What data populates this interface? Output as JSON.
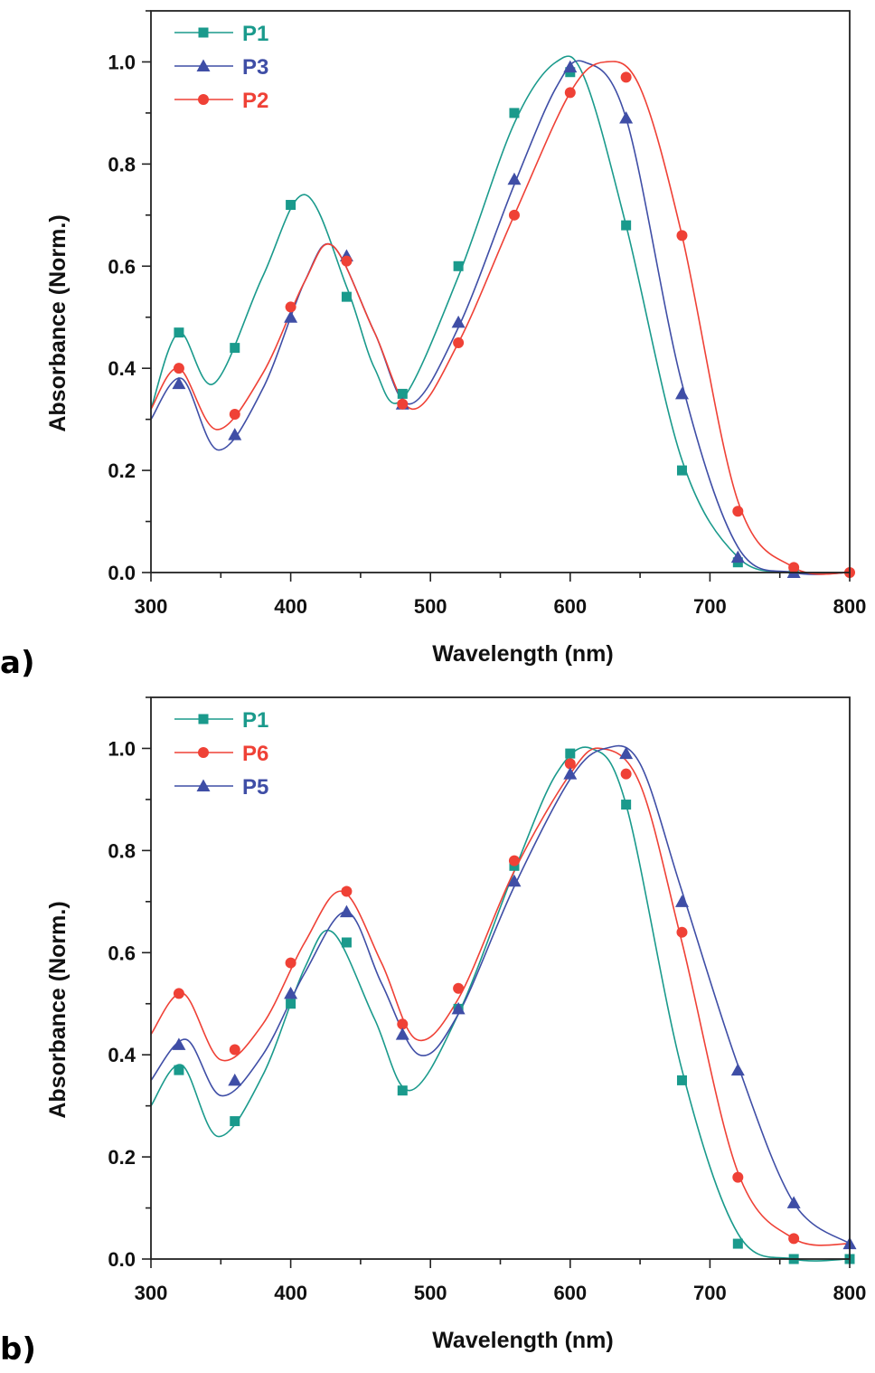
{
  "colors": {
    "P1": "#1a9a8c",
    "P2": "#ef4136",
    "P3": "#3f4ea6",
    "P5": "#3f4ea6",
    "P6": "#ef4136"
  },
  "chart_data": [
    {
      "panel_label": "a)",
      "type": "line",
      "xlabel": "Wavelength (nm)",
      "ylabel": "Absorbance (Norm.)",
      "xlim": [
        300,
        800
      ],
      "ylim": [
        0,
        1.1
      ],
      "x_ticks": [
        "300",
        "400",
        "500",
        "600",
        "700",
        "800"
      ],
      "y_ticks": [
        "0.0",
        "0.2",
        "0.4",
        "0.6",
        "0.8",
        "1.0"
      ],
      "legend_position": "top-left",
      "legend": [
        "P1",
        "P3",
        "P2"
      ],
      "series": [
        {
          "name": "P1",
          "marker": "square",
          "color": "#1a9a8c",
          "x": [
            320,
            360,
            400,
            440,
            480,
            520,
            560,
            600,
            640,
            680,
            720,
            760
          ],
          "y": [
            0.47,
            0.44,
            0.72,
            0.54,
            0.35,
            0.6,
            0.9,
            0.98,
            0.68,
            0.2,
            0.02,
            0.0
          ],
          "curve_x": [
            300,
            320,
            345,
            380,
            410,
            440,
            460,
            480,
            520,
            560,
            590,
            610,
            640,
            680,
            720,
            760,
            800
          ],
          "curve_y": [
            0.32,
            0.47,
            0.37,
            0.58,
            0.74,
            0.56,
            0.4,
            0.34,
            0.58,
            0.88,
            1.0,
            0.97,
            0.68,
            0.22,
            0.03,
            0.0,
            0.0
          ]
        },
        {
          "name": "P3",
          "marker": "triangle",
          "color": "#3f4ea6",
          "x": [
            320,
            360,
            400,
            440,
            480,
            520,
            560,
            600,
            640,
            680,
            720,
            760
          ],
          "y": [
            0.37,
            0.27,
            0.5,
            0.62,
            0.33,
            0.49,
            0.77,
            0.99,
            0.89,
            0.35,
            0.03,
            0.0
          ],
          "curve_x": [
            300,
            322,
            348,
            380,
            410,
            430,
            460,
            485,
            520,
            560,
            590,
            610,
            640,
            680,
            720,
            760,
            800
          ],
          "curve_y": [
            0.3,
            0.38,
            0.24,
            0.36,
            0.57,
            0.64,
            0.47,
            0.33,
            0.48,
            0.76,
            0.95,
            1.0,
            0.89,
            0.37,
            0.05,
            0.0,
            0.0
          ]
        },
        {
          "name": "P2",
          "marker": "circle",
          "color": "#ef4136",
          "x": [
            320,
            360,
            400,
            440,
            480,
            520,
            560,
            600,
            640,
            680,
            720,
            760,
            800
          ],
          "y": [
            0.4,
            0.31,
            0.52,
            0.61,
            0.33,
            0.45,
            0.7,
            0.94,
            0.97,
            0.66,
            0.12,
            0.01,
            0.0
          ],
          "curve_x": [
            300,
            320,
            347,
            380,
            410,
            430,
            460,
            487,
            520,
            560,
            600,
            625,
            650,
            680,
            720,
            760,
            800
          ],
          "curve_y": [
            0.32,
            0.4,
            0.28,
            0.39,
            0.57,
            0.64,
            0.47,
            0.32,
            0.45,
            0.7,
            0.94,
            1.0,
            0.95,
            0.66,
            0.14,
            0.01,
            0.0
          ]
        }
      ]
    },
    {
      "panel_label": "b)",
      "type": "line",
      "xlabel": "Wavelength (nm)",
      "ylabel": "Absorbance (Norm.)",
      "xlim": [
        300,
        800
      ],
      "ylim": [
        0,
        1.1
      ],
      "x_ticks": [
        "300",
        "400",
        "500",
        "600",
        "700",
        "800"
      ],
      "y_ticks": [
        "0.0",
        "0.2",
        "0.4",
        "0.6",
        "0.8",
        "1.0"
      ],
      "legend_position": "top-left",
      "legend": [
        "P1",
        "P6",
        "P5"
      ],
      "series": [
        {
          "name": "P1",
          "marker": "square",
          "color": "#1a9a8c",
          "x": [
            320,
            360,
            400,
            440,
            480,
            520,
            560,
            600,
            640,
            680,
            720,
            760,
            800
          ],
          "y": [
            0.37,
            0.27,
            0.5,
            0.62,
            0.33,
            0.49,
            0.77,
            0.99,
            0.89,
            0.35,
            0.03,
            0.0,
            0.0
          ],
          "curve_x": [
            300,
            322,
            348,
            380,
            410,
            430,
            460,
            485,
            520,
            560,
            590,
            615,
            640,
            680,
            720,
            760,
            800
          ],
          "curve_y": [
            0.3,
            0.38,
            0.24,
            0.36,
            0.57,
            0.64,
            0.47,
            0.33,
            0.48,
            0.76,
            0.95,
            1.0,
            0.89,
            0.37,
            0.05,
            0.0,
            0.0
          ]
        },
        {
          "name": "P6",
          "marker": "circle",
          "color": "#ef4136",
          "x": [
            320,
            360,
            400,
            440,
            480,
            520,
            560,
            600,
            640,
            680,
            720,
            760
          ],
          "y": [
            0.52,
            0.41,
            0.58,
            0.72,
            0.46,
            0.53,
            0.78,
            0.97,
            0.95,
            0.64,
            0.16,
            0.04
          ],
          "curve_x": [
            300,
            323,
            350,
            380,
            410,
            437,
            465,
            490,
            520,
            560,
            600,
            622,
            650,
            680,
            720,
            760,
            800
          ],
          "curve_y": [
            0.44,
            0.52,
            0.39,
            0.46,
            0.62,
            0.72,
            0.58,
            0.43,
            0.51,
            0.76,
            0.95,
            1.0,
            0.93,
            0.62,
            0.17,
            0.04,
            0.03
          ]
        },
        {
          "name": "P5",
          "marker": "triangle",
          "color": "#3f4ea6",
          "x": [
            320,
            360,
            400,
            440,
            480,
            520,
            560,
            600,
            640,
            680,
            720,
            760,
            800
          ],
          "y": [
            0.42,
            0.35,
            0.52,
            0.68,
            0.44,
            0.49,
            0.74,
            0.95,
            0.99,
            0.7,
            0.37,
            0.11,
            0.03
          ],
          "curve_x": [
            300,
            325,
            350,
            380,
            410,
            440,
            465,
            492,
            520,
            560,
            600,
            625,
            650,
            680,
            720,
            760,
            800
          ],
          "curve_y": [
            0.35,
            0.43,
            0.32,
            0.4,
            0.56,
            0.68,
            0.54,
            0.4,
            0.48,
            0.73,
            0.94,
            1.0,
            0.97,
            0.72,
            0.38,
            0.11,
            0.03
          ]
        }
      ]
    }
  ]
}
